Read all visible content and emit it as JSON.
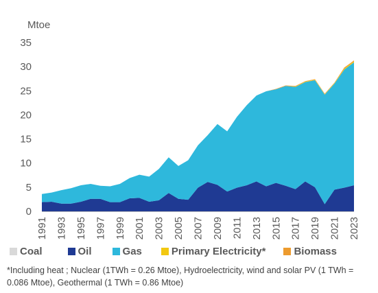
{
  "chart_data": {
    "type": "area",
    "stacked": true,
    "unit_label": "Mtoe",
    "x": [
      1991,
      1992,
      1993,
      1994,
      1995,
      1996,
      1997,
      1998,
      1999,
      2000,
      2001,
      2002,
      2003,
      2004,
      2005,
      2006,
      2007,
      2008,
      2009,
      2010,
      2011,
      2012,
      2013,
      2014,
      2015,
      2016,
      2017,
      2018,
      2019,
      2020,
      2021,
      2022,
      2023
    ],
    "x_tick_labels": [
      "1991",
      "1993",
      "1995",
      "1997",
      "1999",
      "2001",
      "2003",
      "2005",
      "2007",
      "2009",
      "2011",
      "2013",
      "2015",
      "2017",
      "2019",
      "2021",
      "2023"
    ],
    "y_ticks": [
      0,
      5,
      10,
      15,
      20,
      25,
      30,
      35
    ],
    "ylim": [
      0,
      35
    ],
    "grid": false,
    "legend_position": "bottom",
    "series": [
      {
        "name": "Coal",
        "color": "#d9d9d9",
        "values": [
          0,
          0,
          0,
          0,
          0,
          0,
          0,
          0,
          0,
          0,
          0,
          0,
          0,
          0,
          0,
          0,
          0,
          0,
          0,
          0,
          0,
          0,
          0,
          0,
          0,
          0,
          0,
          0,
          0,
          0,
          0,
          0,
          0
        ]
      },
      {
        "name": "Oil",
        "color": "#1f3a93",
        "values": [
          1.9,
          2.0,
          1.6,
          1.6,
          2.0,
          2.6,
          2.6,
          1.9,
          1.9,
          2.7,
          2.8,
          2.0,
          2.3,
          3.8,
          2.6,
          2.4,
          4.9,
          6.1,
          5.5,
          4.1,
          4.9,
          5.4,
          6.2,
          5.2,
          5.9,
          5.3,
          4.6,
          6.2,
          5.0,
          1.5,
          4.5,
          4.9,
          5.4
        ]
      },
      {
        "name": "Gas",
        "color": "#2eb8dc",
        "values": [
          1.7,
          1.9,
          2.8,
          3.2,
          3.4,
          3.1,
          2.7,
          3.3,
          3.8,
          4.2,
          4.8,
          5.2,
          6.5,
          7.4,
          6.8,
          8.2,
          8.8,
          9.7,
          12.6,
          12.5,
          14.7,
          16.6,
          17.8,
          19.7,
          19.4,
          20.7,
          21.2,
          20.6,
          22.2,
          22.7,
          22.0,
          24.5,
          25.5
        ]
      },
      {
        "name": "Primary Electricity*",
        "color": "#f2c811",
        "values": [
          0,
          0,
          0,
          0,
          0,
          0,
          0,
          0,
          0,
          0,
          0,
          0,
          0,
          0,
          0,
          0,
          0,
          0,
          0,
          0,
          0,
          0,
          0,
          0,
          0,
          0,
          0.1,
          0.1,
          0.1,
          0.1,
          0.1,
          0.2,
          0.2
        ]
      },
      {
        "name": "Biomass",
        "color": "#ed9b2e",
        "values": [
          0,
          0,
          0,
          0,
          0,
          0,
          0,
          0,
          0,
          0,
          0,
          0,
          0,
          0,
          0,
          0,
          0,
          0,
          0,
          0,
          0,
          0,
          0,
          0,
          0.1,
          0.1,
          0.1,
          0.1,
          0.1,
          0.1,
          0.1,
          0.2,
          0.2
        ]
      }
    ]
  },
  "footnote": "*Including heat ; Nuclear (1TWh = 0.26 Mtoe), Hydroelectricity, wind and solar PV (1 TWh = 0.086 Mtoe), Geothermal (1 TWh = 0.86 Mtoe)"
}
